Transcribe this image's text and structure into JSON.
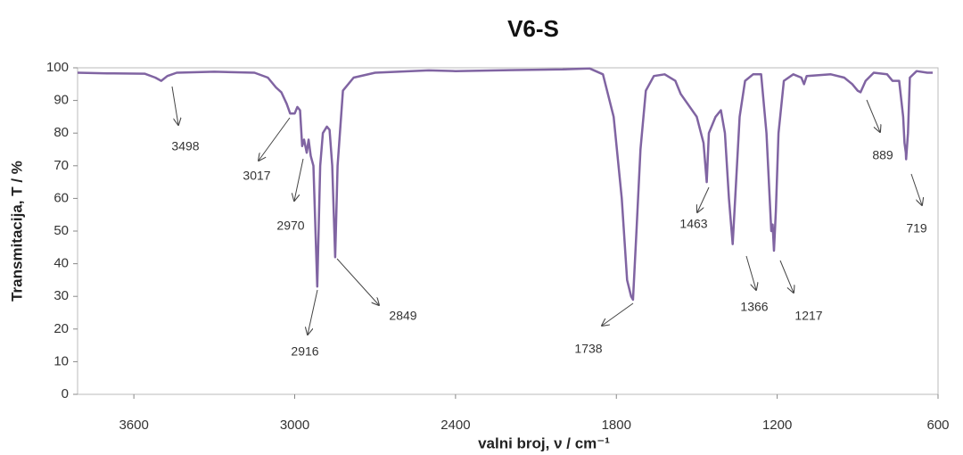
{
  "chart_data": {
    "type": "line",
    "title": "V6-S",
    "x_label": "valni broj, ν / cm⁻¹",
    "y_label": "Transmitacija,  T / %",
    "xlim": [
      3810,
      600
    ],
    "ylim": [
      0,
      100
    ],
    "xticks": [
      3600,
      3000,
      2400,
      1800,
      1200,
      600
    ],
    "yticks": [
      0,
      10,
      20,
      30,
      40,
      50,
      60,
      70,
      80,
      90,
      100
    ],
    "grid": false,
    "color": "#8064a2",
    "x": [
      3810,
      3700,
      3560,
      3520,
      3498,
      3475,
      3440,
      3300,
      3150,
      3100,
      3070,
      3050,
      3030,
      3017,
      3000,
      2990,
      2980,
      2972,
      2965,
      2955,
      2948,
      2940,
      2930,
      2916,
      2905,
      2895,
      2880,
      2870,
      2860,
      2849,
      2840,
      2820,
      2780,
      2700,
      2500,
      2400,
      2200,
      2000,
      1900,
      1850,
      1810,
      1780,
      1760,
      1745,
      1738,
      1725,
      1710,
      1690,
      1660,
      1620,
      1580,
      1560,
      1500,
      1475,
      1470,
      1463,
      1455,
      1430,
      1410,
      1395,
      1380,
      1370,
      1366,
      1360,
      1340,
      1320,
      1290,
      1260,
      1240,
      1228,
      1222,
      1217,
      1212,
      1205,
      1195,
      1175,
      1140,
      1110,
      1100,
      1090,
      1000,
      950,
      920,
      900,
      889,
      870,
      840,
      790,
      770,
      745,
      730,
      725,
      720,
      719,
      712,
      705,
      680,
      640,
      620
    ],
    "values": [
      98.5,
      98.3,
      98.2,
      97,
      96,
      97.5,
      98.5,
      98.8,
      98.5,
      97,
      94,
      92.5,
      89,
      86,
      86,
      88,
      87,
      76,
      78,
      74,
      78,
      73,
      70,
      33,
      70,
      80,
      82,
      81,
      70,
      42,
      70,
      93,
      97,
      98.5,
      99.2,
      99,
      99.3,
      99.5,
      99.8,
      98,
      85,
      60,
      35,
      30,
      29,
      50,
      75,
      93,
      97.5,
      98,
      96,
      92,
      85,
      77,
      72,
      65,
      80,
      85,
      87,
      80,
      60,
      50,
      46,
      55,
      85,
      96,
      98,
      98,
      80,
      60,
      50,
      52,
      44,
      56,
      80,
      96,
      98,
      97,
      95,
      97.5,
      98,
      97,
      95,
      93,
      92.5,
      96,
      98.5,
      98,
      96,
      96,
      85,
      77,
      74,
      72,
      80,
      97,
      99,
      98.5,
      98.5
    ],
    "peaks": [
      3498,
      3017,
      2970,
      2916,
      2849,
      1738,
      1463,
      1366,
      1217,
      889,
      719
    ]
  }
}
